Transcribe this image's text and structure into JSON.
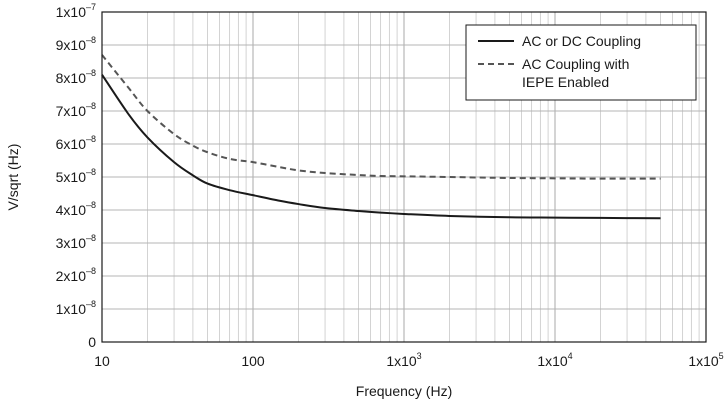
{
  "chart_data": {
    "type": "line",
    "xlabel": "Frequency (Hz)",
    "ylabel": "V/sqrt (Hz)",
    "x_scale": "log",
    "xlim": [
      10,
      100000
    ],
    "ylim": [
      0,
      1e-07
    ],
    "grid": true,
    "legend_position": "top-right",
    "x_ticks": [
      {
        "value": 10,
        "base": "10",
        "sup": ""
      },
      {
        "value": 100,
        "base": "100",
        "sup": ""
      },
      {
        "value": 1000,
        "base": "1x10",
        "sup": "3"
      },
      {
        "value": 10000,
        "base": "1x10",
        "sup": "4"
      },
      {
        "value": 100000,
        "base": "1x10",
        "sup": "5"
      }
    ],
    "y_ticks": [
      {
        "value": 0,
        "base": "0",
        "sup": ""
      },
      {
        "value": 1e-08,
        "base": "1x10",
        "sup": "–8"
      },
      {
        "value": 2e-08,
        "base": "2x10",
        "sup": "–8"
      },
      {
        "value": 3e-08,
        "base": "3x10",
        "sup": "–8"
      },
      {
        "value": 4e-08,
        "base": "4x10",
        "sup": "–8"
      },
      {
        "value": 5e-08,
        "base": "5x10",
        "sup": "–8"
      },
      {
        "value": 6e-08,
        "base": "6x10",
        "sup": "–8"
      },
      {
        "value": 7e-08,
        "base": "7x10",
        "sup": "–8"
      },
      {
        "value": 8e-08,
        "base": "8x10",
        "sup": "–8"
      },
      {
        "value": 9e-08,
        "base": "9x10",
        "sup": "–8"
      },
      {
        "value": 1e-07,
        "base": "1x10",
        "sup": "–7"
      }
    ],
    "series": [
      {
        "name": "AC or DC Coupling",
        "style": "solid",
        "color": "#1a1a1a",
        "x": [
          10,
          15,
          20,
          30,
          40,
          50,
          70,
          100,
          150,
          200,
          300,
          500,
          700,
          1000,
          2000,
          5000,
          10000,
          20000,
          50000
        ],
        "y": [
          8.1e-08,
          6.9e-08,
          6.2e-08,
          5.45e-08,
          5.05e-08,
          4.8e-08,
          4.6e-08,
          4.45e-08,
          4.28e-08,
          4.18e-08,
          4.06e-08,
          3.97e-08,
          3.92e-08,
          3.88e-08,
          3.82e-08,
          3.78e-08,
          3.77e-08,
          3.76e-08,
          3.75e-08
        ]
      },
      {
        "name": "AC Coupling with IEPE Enabled",
        "style": "dashed",
        "color": "#555555",
        "x": [
          10,
          15,
          20,
          30,
          40,
          50,
          70,
          100,
          150,
          200,
          300,
          500,
          700,
          1000,
          2000,
          5000,
          10000,
          20000,
          50000
        ],
        "y": [
          8.7e-08,
          7.7e-08,
          7e-08,
          6.3e-08,
          5.95e-08,
          5.75e-08,
          5.55e-08,
          5.45e-08,
          5.3e-08,
          5.2e-08,
          5.12e-08,
          5.06e-08,
          5.03e-08,
          5.02e-08,
          5e-08,
          4.97e-08,
          4.96e-08,
          4.95e-08,
          4.95e-08
        ]
      }
    ],
    "legend": [
      {
        "lines": [
          "AC or DC Coupling"
        ],
        "style": "solid"
      },
      {
        "lines": [
          "AC Coupling with",
          "IEPE Enabled"
        ],
        "style": "dashed"
      }
    ]
  }
}
